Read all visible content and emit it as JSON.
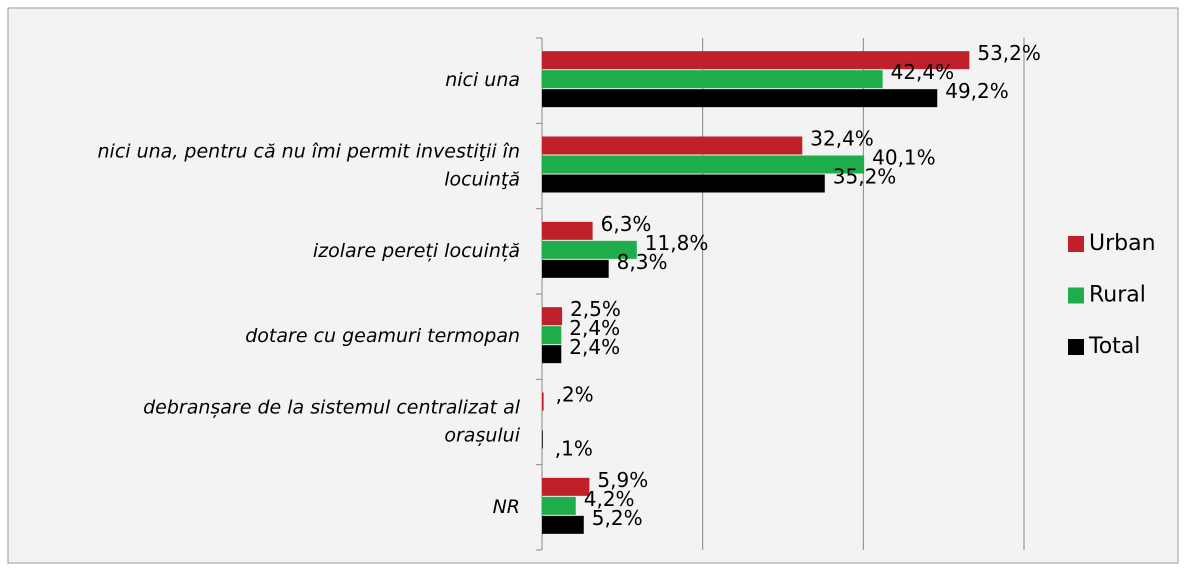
{
  "chart_data": {
    "type": "bar",
    "orientation": "horizontal",
    "categories": [
      [
        "nici una"
      ],
      [
        "nici una, pentru că nu îmi permit investiţii în",
        "locuinţă"
      ],
      [
        "izolare pereți locuință"
      ],
      [
        "dotare cu geamuri termopan"
      ],
      [
        "debranșare de la sistemul centralizat al",
        "orașului"
      ],
      [
        "NR"
      ]
    ],
    "series": [
      {
        "name": "Urban",
        "color": "#c0202a",
        "values": [
          53.2,
          32.4,
          6.3,
          2.5,
          0.2,
          5.9
        ],
        "value_labels": [
          "53,2%",
          "32,4%",
          "6,3%",
          "2,5%",
          ",2%",
          "5,9%"
        ]
      },
      {
        "name": "Rural",
        "color": "#1fad4b",
        "values": [
          42.4,
          40.1,
          11.8,
          2.4,
          null,
          4.2
        ],
        "value_labels": [
          "42,4%",
          "40,1%",
          "11,8%",
          "2,4%",
          null,
          "4,2%"
        ]
      },
      {
        "name": "Total",
        "color": "#000000",
        "values": [
          49.2,
          35.2,
          8.3,
          2.4,
          0.1,
          5.2
        ],
        "value_labels": [
          "49,2%",
          "35,2%",
          "8,3%",
          "2,4%",
          ",1%",
          "5,2%"
        ]
      }
    ],
    "xlim": [
      0,
      60
    ],
    "xticks": [
      0,
      20,
      40,
      60
    ],
    "show_tick_labels": false,
    "grid": true,
    "legend": "right"
  }
}
